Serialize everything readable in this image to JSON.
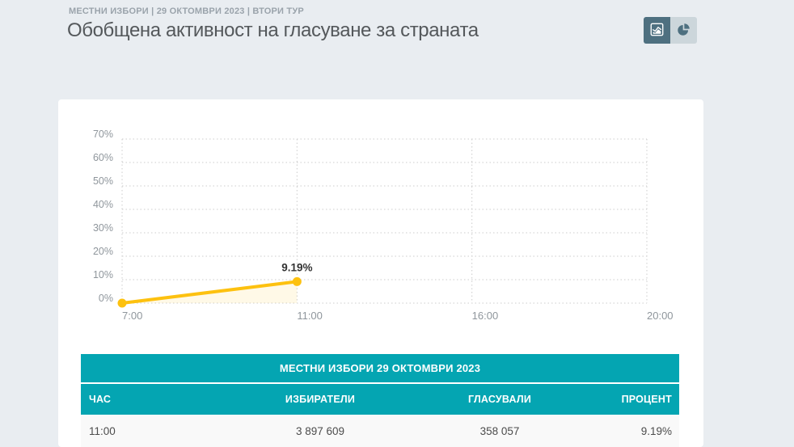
{
  "page": {
    "eyebrow": "МЕСТНИ ИЗБОРИ | 29 ОКТОМВРИ 2023 | ВТОРИ ТУР",
    "title": "Обобщена активност на гласуване за страната"
  },
  "colors": {
    "teal": "#04a5b2",
    "amber": "#fdc10f",
    "page_bg": "#e9edf1",
    "toggle_active_bg": "#4e7080",
    "toggle_inactive_bg": "#ccd6db",
    "grid_line": "#cccccc",
    "axis_label": "#8f969c"
  },
  "view_toggle": {
    "buttons": [
      {
        "icon": "line-chart-icon",
        "state": "active"
      },
      {
        "icon": "pie-chart-icon",
        "state": "inactive"
      }
    ]
  },
  "chart_data": {
    "type": "line",
    "title": "",
    "x": [
      "7:00",
      "11:00",
      "16:00",
      "20:00"
    ],
    "yticks": [
      "70%",
      "60%",
      "50%",
      "40%",
      "30%",
      "20%",
      "10%",
      "0%"
    ],
    "ylim": [
      0,
      70
    ],
    "grid": "dotted",
    "legend": "none",
    "series": [
      {
        "values": [
          0,
          9.19,
          null,
          null
        ],
        "point_labels": [
          "",
          "9.19%",
          "",
          ""
        ],
        "color": "#fdc10f",
        "area_fill": true
      }
    ]
  },
  "table": {
    "title": "МЕСТНИ ИЗБОРИ 29 ОКТОМВРИ 2023",
    "columns": [
      "ЧАС",
      "ИЗБИРАТЕЛИ",
      "ГЛАСУВАЛИ",
      "ПРОЦЕНТ"
    ],
    "rows": [
      [
        "11:00",
        "3 897 609",
        "358 057",
        "9.19%"
      ]
    ]
  }
}
